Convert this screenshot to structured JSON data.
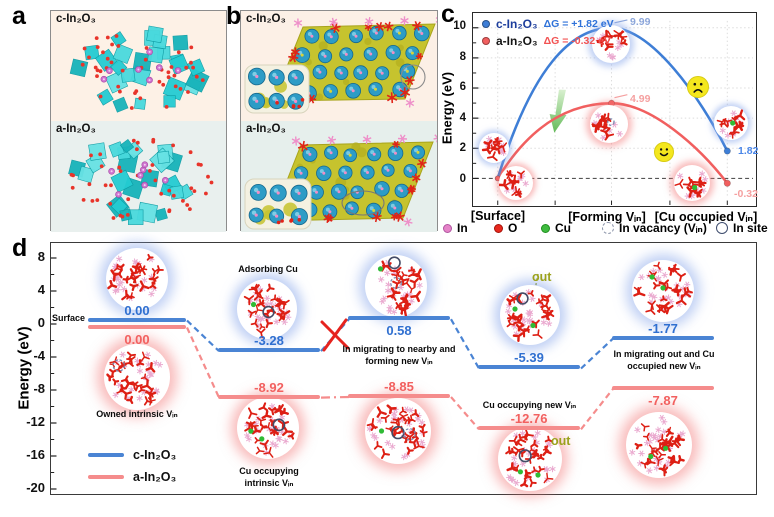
{
  "figure": {
    "panel_a": {
      "label": "a",
      "top_title": "c-In₂O₃",
      "bottom_title": "a-In₂O₃"
    },
    "panel_b": {
      "label": "b",
      "top_title": "c-In₂O₃",
      "bottom_title": "a-In₂O₃"
    },
    "panel_c": {
      "label": "c",
      "ylabel": "Energy (eV)",
      "x_labels": [
        "[Surface]",
        "[Forming Vᵢₙ]",
        "[Cu occupied Vᵢₙ]"
      ],
      "atom_legend": [
        {
          "label": "In",
          "color": "#e583c8"
        },
        {
          "label": "O",
          "color": "#e8281e"
        },
        {
          "label": "Cu",
          "color": "#3fbb3f"
        },
        {
          "label": "In vacancy (Vᵢₙ)",
          "marker": "dashed-circle"
        },
        {
          "label": "In site",
          "marker": "open-circle"
        }
      ]
    },
    "panel_d": {
      "label": "d",
      "ylabel": "Energy (eV)",
      "labels": {
        "surface": "Surface",
        "adsorbing": "Adsorbing Cu",
        "migrating_nearby": "In migrating to nearby and forming new Vᵢₙ",
        "occupying_intrinsic": "Cu occupying intrinsic Vᵢₙ",
        "occupying_new": "Cu occupying new Vᵢₙ",
        "migrating_out": "In migrating out and Cu occupied new Vᵢₙ",
        "owned": "Owned intrinsic Vᵢₙ",
        "out": "out"
      }
    }
  },
  "chart_data": [
    {
      "panel": "c",
      "type": "line",
      "ylabel": "Energy (eV)",
      "ylim": [
        -1.6,
        10.8
      ],
      "yticks": [
        0,
        2,
        4,
        6,
        8,
        10
      ],
      "categories": [
        "[Surface]",
        "[Forming Vᵢₙ]",
        "[Cu occupied Vᵢₙ]"
      ],
      "series": [
        {
          "name": "c-In₂O₃",
          "annotation": "ΔG = +1.82 eV",
          "color": "#3e7ed6",
          "values": [
            0,
            9.99,
            1.82
          ],
          "point_labels": [
            "",
            "9.99",
            "1.82"
          ]
        },
        {
          "name": "a-In₂O₃",
          "annotation": "ΔG = -0.32 eV",
          "color": "#f15f5f",
          "values": [
            0,
            4.99,
            -0.32
          ],
          "point_labels": [
            "",
            "4.99",
            "-0.32"
          ]
        }
      ],
      "grid": true,
      "legend_position": "top-left"
    },
    {
      "panel": "d",
      "type": "energy-profile",
      "ylabel": "Energy (eV)",
      "ylim": [
        -21,
        9.5
      ],
      "yticks": [
        8,
        4,
        0,
        -4,
        -8,
        -12,
        -16,
        -20
      ],
      "series": [
        {
          "name": "c-In₂O₃",
          "color": "#4a84d4",
          "label_color": "#2f6fd0",
          "values": [
            0.0,
            -3.28,
            0.58,
            -5.39,
            -1.77
          ]
        },
        {
          "name": "a-In₂O₃",
          "color": "#f58c8c",
          "label_color": "#f2605f",
          "values": [
            0.0,
            -8.92,
            -8.85,
            -12.76,
            -7.87
          ]
        }
      ],
      "annotations": [
        "out",
        "out"
      ],
      "legend_position": "bottom-left"
    }
  ]
}
